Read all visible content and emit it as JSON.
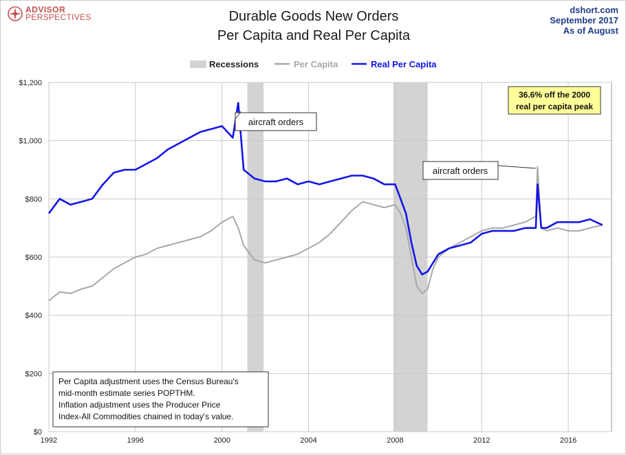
{
  "header": {
    "logo_line1": "ADVISOR",
    "logo_line2": "PERSPECTIVES",
    "title_line1": "Durable Goods New Orders",
    "title_line2": "Per Capita and Real Per Capita",
    "source": "dshort.com",
    "date": "September 2017",
    "as_of": "As  of August"
  },
  "colors": {
    "per_capita": "#a8a8a8",
    "real_per_capita": "#1414e6",
    "recession": "#d3d3d3",
    "brand": "#c0504d",
    "corner_text": "#1f3b87",
    "callout_bg": "#ffff99"
  },
  "chart_data": {
    "type": "line",
    "xlim": [
      1992,
      2018
    ],
    "ylim": [
      0,
      1200
    ],
    "x_ticks": [
      1992,
      1996,
      2000,
      2004,
      2008,
      2012,
      2016
    ],
    "x_tick_labels": [
      "1992",
      "1996",
      "2000",
      "2004",
      "2008",
      "2012",
      "2016"
    ],
    "y_ticks": [
      0,
      200,
      400,
      600,
      800,
      1000,
      1200
    ],
    "y_tick_labels": [
      "$0",
      "$200",
      "$400",
      "$600",
      "$800",
      "$1,000",
      "$1,200"
    ],
    "grid": true,
    "legend": {
      "position": "top-center",
      "recession_label": "Recessions"
    },
    "recessions": [
      [
        2001.17,
        2001.92
      ],
      [
        2007.92,
        2009.5
      ]
    ],
    "x": [
      1992,
      1992.5,
      1993,
      1993.5,
      1994,
      1994.5,
      1995,
      1995.5,
      1996,
      1996.5,
      1997,
      1997.5,
      1998,
      1998.5,
      1999,
      1999.5,
      2000,
      2000.5,
      2000.75,
      2001,
      2001.5,
      2002,
      2002.5,
      2003,
      2003.5,
      2004,
      2004.5,
      2005,
      2005.5,
      2006,
      2006.5,
      2007,
      2007.5,
      2008,
      2008.25,
      2008.5,
      2008.75,
      2009,
      2009.25,
      2009.5,
      2009.75,
      2010,
      2010.5,
      2011,
      2011.5,
      2012,
      2012.5,
      2013,
      2013.5,
      2014,
      2014.5,
      2014.58,
      2014.75,
      2015,
      2015.5,
      2016,
      2016.5,
      2017,
      2017.58
    ],
    "series": [
      {
        "name": "Per Capita",
        "values": [
          450,
          480,
          475,
          490,
          500,
          530,
          560,
          580,
          600,
          610,
          630,
          640,
          650,
          660,
          670,
          690,
          720,
          740,
          700,
          640,
          590,
          580,
          590,
          600,
          610,
          630,
          650,
          680,
          720,
          760,
          790,
          780,
          770,
          780,
          750,
          700,
          600,
          500,
          475,
          490,
          560,
          600,
          630,
          650,
          670,
          690,
          700,
          700,
          710,
          720,
          740,
          910,
          700,
          690,
          700,
          690,
          690,
          700,
          710
        ]
      },
      {
        "name": "Real Per Capita",
        "values": [
          750,
          800,
          780,
          790,
          800,
          850,
          890,
          900,
          900,
          920,
          940,
          970,
          990,
          1010,
          1030,
          1040,
          1050,
          1010,
          1130,
          900,
          870,
          860,
          860,
          870,
          850,
          860,
          850,
          860,
          870,
          880,
          880,
          870,
          850,
          850,
          800,
          750,
          650,
          570,
          540,
          550,
          580,
          610,
          630,
          640,
          650,
          680,
          690,
          690,
          690,
          700,
          700,
          850,
          700,
          700,
          720,
          720,
          720,
          730,
          710
        ]
      }
    ],
    "annotations": {
      "callout_2000": "aircraft orders",
      "callout_2014": "aircraft orders",
      "peak_note_line1": "36.6% off the 2000",
      "peak_note_line2": "real per capita peak",
      "note_lines": [
        "Per Capita adjustment uses the Census Bureau's",
        "mid-month estimate series POPTHM.",
        "Inflation adjustment uses the Producer Price",
        "Index-All Commodities chained in today's value."
      ]
    }
  }
}
